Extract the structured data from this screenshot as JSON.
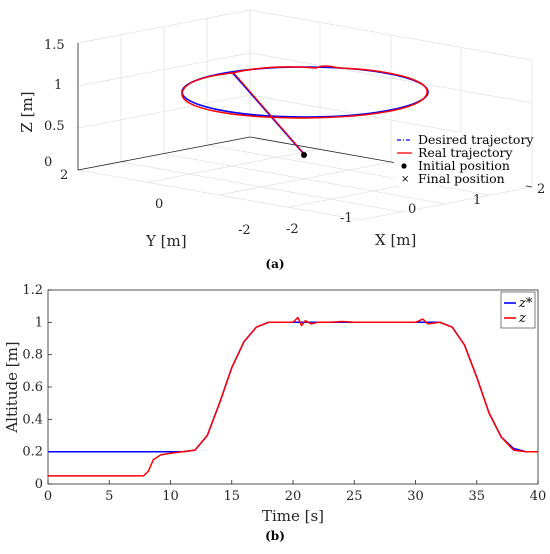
{
  "chart_data": [
    {
      "type": "line",
      "subplot_label": "(a)",
      "projection": "3d",
      "xlabel": "X [m]",
      "ylabel": "Y [m]",
      "zlabel": "Z [m]",
      "x_ticks": [
        "-2",
        "-1",
        "0",
        "1",
        "2"
      ],
      "y_ticks": [
        "-2",
        "0",
        "2"
      ],
      "z_ticks": [
        "0",
        "0.5",
        "1",
        "1.5"
      ],
      "xlim": [
        -2,
        2
      ],
      "ylim": [
        -2,
        2
      ],
      "zlim": [
        0,
        1.5
      ],
      "grid": true,
      "legend_position": "bottom-right",
      "legend": [
        {
          "label": "Desired trajectory",
          "style": "dash-dot",
          "color": "#0000ff"
        },
        {
          "label": "Real trajectory",
          "style": "solid",
          "color": "#ff0000"
        },
        {
          "label": "Initial position",
          "style": "dot",
          "color": "#000000"
        },
        {
          "label": "Final position",
          "style": "x",
          "color": "#000000"
        }
      ],
      "series": [
        {
          "name": "Desired trajectory",
          "description_points": [
            [
              0,
              0,
              0.2
            ],
            [
              0,
              1.5,
              1.0
            ],
            [
              1.5,
              0,
              1.0
            ],
            [
              0,
              -1.5,
              1.0
            ],
            [
              -1.5,
              0,
              1.0
            ],
            [
              0,
              1.5,
              1.0
            ]
          ]
        },
        {
          "name": "Real trajectory",
          "description_points": [
            [
              0,
              0,
              0.05
            ],
            [
              0,
              1.5,
              1.0
            ],
            [
              1.5,
              0,
              1.0
            ],
            [
              0,
              -1.5,
              1.0
            ],
            [
              -1.5,
              0,
              1.0
            ],
            [
              0,
              1.5,
              1.0
            ]
          ]
        }
      ]
    },
    {
      "type": "line",
      "subplot_label": "(b)",
      "xlabel": "Time [s]",
      "ylabel": "Altitude [m]",
      "xlim": [
        0,
        40
      ],
      "ylim": [
        0,
        1.2
      ],
      "x_ticks": [
        "0",
        "5",
        "10",
        "15",
        "20",
        "25",
        "30",
        "35",
        "40"
      ],
      "y_ticks": [
        "0",
        "0.2",
        "0.4",
        "0.6",
        "0.8",
        "1",
        "1.2"
      ],
      "grid": false,
      "legend_position": "top-right",
      "colors": {
        "desired": "#0000ff",
        "real": "#ff0000"
      },
      "legend": [
        {
          "label": "z*",
          "color": "#0000ff"
        },
        {
          "label": "z",
          "color": "#ff0000"
        }
      ],
      "series": [
        {
          "name": "z*",
          "x": [
            0,
            11,
            12,
            13,
            14,
            15,
            16,
            17,
            18,
            32,
            33,
            34,
            35,
            36,
            37,
            38,
            39,
            40
          ],
          "y": [
            0.2,
            0.2,
            0.21,
            0.3,
            0.5,
            0.72,
            0.88,
            0.97,
            1.0,
            1.0,
            0.97,
            0.86,
            0.66,
            0.44,
            0.29,
            0.22,
            0.2,
            0.2
          ]
        },
        {
          "name": "z",
          "x": [
            0,
            7.8,
            8.2,
            8.6,
            9.2,
            10,
            11,
            12,
            13,
            14,
            15,
            16,
            17,
            18,
            20,
            20.4,
            20.7,
            21,
            21.5,
            22,
            23,
            24,
            25,
            30,
            30.6,
            31,
            32,
            33,
            34,
            35,
            36,
            37,
            38,
            39,
            40
          ],
          "y": [
            0.05,
            0.05,
            0.08,
            0.15,
            0.18,
            0.19,
            0.2,
            0.21,
            0.3,
            0.5,
            0.72,
            0.88,
            0.97,
            1.0,
            1.0,
            1.03,
            0.98,
            1.01,
            0.99,
            1.0,
            1.0,
            1.005,
            1.0,
            1.0,
            1.02,
            0.99,
            1.0,
            0.97,
            0.86,
            0.66,
            0.44,
            0.29,
            0.21,
            0.2,
            0.2
          ]
        }
      ]
    }
  ],
  "figure_a": {
    "z_axis_label": "Z [m]",
    "y_axis_label": "Y [m]",
    "x_axis_label": "X [m]",
    "caption": "(a)",
    "legend": {
      "desired": "Desired trajectory",
      "real": "Real trajectory",
      "initial": "Initial position",
      "final": "Final position"
    }
  },
  "figure_b": {
    "x_axis_label": "Time [s]",
    "y_axis_label": "Altitude [m]",
    "caption": "(b)",
    "legend": {
      "desired": "z*",
      "real": "z"
    }
  }
}
